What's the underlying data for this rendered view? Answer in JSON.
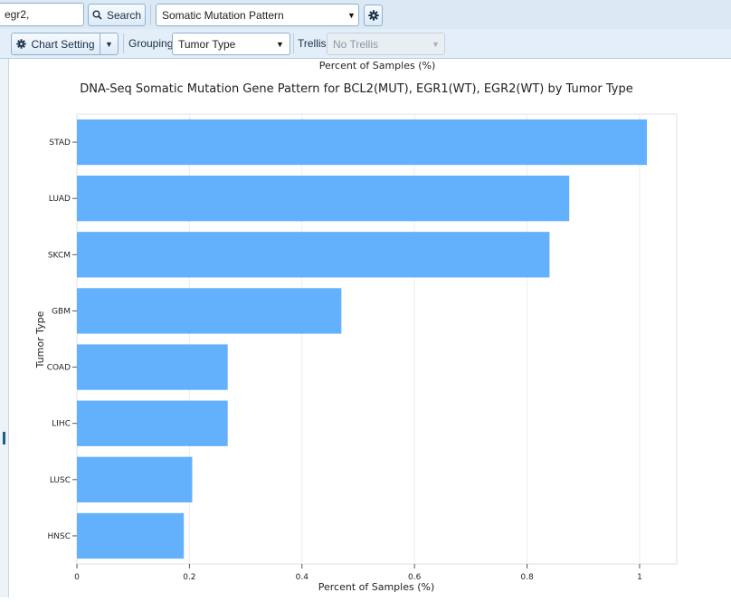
{
  "toolbar": {
    "gene_input_value": "egr2,",
    "search_label": "Search",
    "analysis_select_value": "Somatic Mutation Pattern",
    "chart_setting_label": "Chart Setting",
    "grouping_label": "Grouping",
    "grouping_value": "Tumor Type",
    "trellis_label": "Trellis",
    "trellis_value": "No Trellis"
  },
  "chart_data": {
    "type": "bar",
    "orientation": "horizontal",
    "title": "DNA-Seq Somatic Mutation Gene Pattern for BCL2(MUT), EGR1(WT), EGR2(WT) by Tumor Type",
    "top_axis_label": "Percent of Samples (%)",
    "xlabel": "Percent of Samples (%)",
    "ylabel": "Tumor Type",
    "categories": [
      "STAD",
      "LUAD",
      "SKCM",
      "GBM",
      "COAD",
      "LIHC",
      "LUSC",
      "HNSC"
    ],
    "values": [
      1.013,
      0.875,
      0.84,
      0.47,
      0.268,
      0.268,
      0.205,
      0.19
    ],
    "xlim": [
      0,
      1.066
    ],
    "xticks": [
      "0",
      "0.2",
      "0.4",
      "0.6",
      "0.8",
      "1"
    ],
    "xtick_values": [
      0,
      0.2,
      0.4,
      0.6,
      0.8,
      1.0
    ],
    "bar_color": "#63b0fc",
    "grid": true
  }
}
